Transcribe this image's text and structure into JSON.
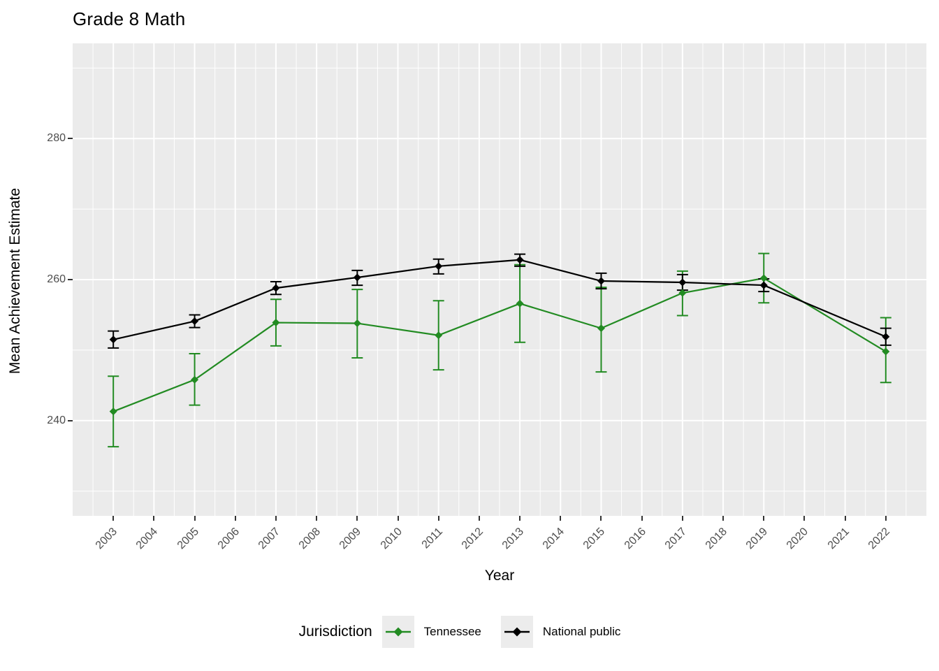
{
  "title": "Grade 8 Math",
  "axes": {
    "x_label": "Year",
    "y_label": "Mean Achievement Estimate"
  },
  "legend": {
    "title": "Jurisdiction",
    "entries": [
      {
        "label": "Tennessee",
        "color": "#228B22"
      },
      {
        "label": "National public",
        "color": "#000000"
      }
    ]
  },
  "style": {
    "panel_background": "#EBEBEB",
    "gridline_color": "#FFFFFF",
    "tick_mark_color": "#333333",
    "tick_label_color": "#4D4D4D",
    "legend_key_background": "#ECECEC"
  },
  "chart_data": {
    "type": "line",
    "title": "Grade 8 Math",
    "xlabel": "Year",
    "ylabel": "Mean Achievement Estimate",
    "xlim": [
      2002,
      2023
    ],
    "ylim": [
      226.5,
      293.5
    ],
    "x_breaks": [
      2003,
      2004,
      2005,
      2006,
      2007,
      2008,
      2009,
      2010,
      2011,
      2012,
      2013,
      2014,
      2015,
      2016,
      2017,
      2018,
      2019,
      2020,
      2021,
      2022
    ],
    "y_breaks": [
      240,
      260,
      280
    ],
    "y_minor_breaks": [
      230,
      250,
      270,
      290
    ],
    "x_minor_step": 0.5,
    "grid": true,
    "error_bars": true,
    "legend_position": "bottom",
    "legend_title": "Jurisdiction",
    "marker": "diamond",
    "x": [
      2003,
      2005,
      2007,
      2009,
      2011,
      2013,
      2015,
      2017,
      2019,
      2022
    ],
    "series": [
      {
        "name": "Tennessee",
        "color": "#228B22",
        "values": [
          241.3,
          245.8,
          253.9,
          253.8,
          252.1,
          256.6,
          253.1,
          258.1,
          260.2,
          249.8
        ],
        "ci_low": [
          236.3,
          242.2,
          250.6,
          248.9,
          247.2,
          251.1,
          246.9,
          254.9,
          256.7,
          245.4
        ],
        "ci_high": [
          246.3,
          249.5,
          257.2,
          258.6,
          257.0,
          262.1,
          258.9,
          261.2,
          263.7,
          254.6
        ]
      },
      {
        "name": "National public",
        "color": "#000000",
        "values": [
          251.5,
          254.1,
          258.8,
          260.3,
          261.9,
          262.8,
          259.8,
          259.6,
          259.2,
          251.9
        ],
        "ci_low": [
          250.3,
          253.2,
          257.9,
          259.2,
          260.8,
          261.9,
          258.7,
          258.5,
          258.3,
          250.7
        ],
        "ci_high": [
          252.7,
          255.0,
          259.7,
          261.3,
          262.9,
          263.6,
          260.9,
          260.7,
          260.1,
          253.1
        ]
      }
    ]
  }
}
